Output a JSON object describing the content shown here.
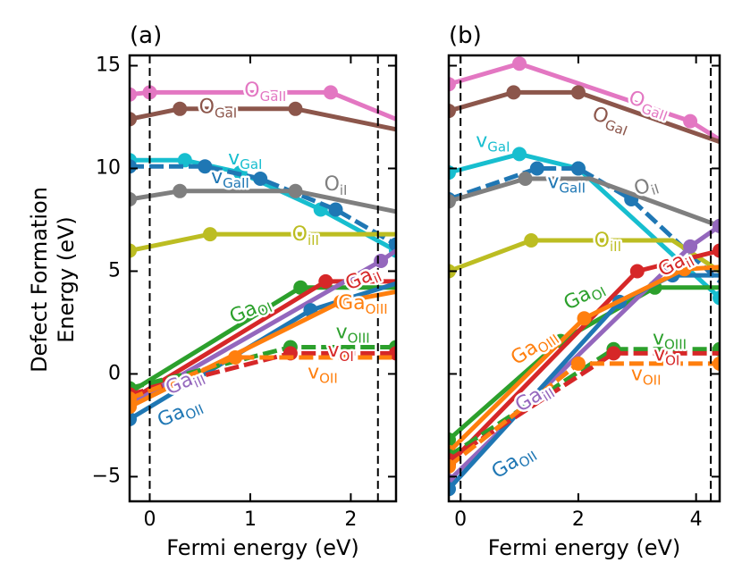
{
  "figure": {
    "y_axis_label_line1": "Defect Formation",
    "y_axis_label_line2": "Energy (eV)"
  },
  "chart_data": [
    {
      "panel_label": "(a)",
      "type": "line",
      "xlabel": "Fermi energy (eV)",
      "ylabel": "Defect Formation Energy (eV)",
      "xlim": [
        -0.2,
        2.45
      ],
      "ylim": [
        -6.2,
        15.5
      ],
      "xticks": [
        0,
        1,
        2
      ],
      "yticks": [
        -5,
        0,
        5,
        10,
        15
      ],
      "vlines": [
        0,
        2.27
      ],
      "series": [
        {
          "key": "OGaII",
          "base": "O",
          "sub": "GaII",
          "color": "#e377c2",
          "dash": false,
          "x": [
            -0.2,
            0.0,
            1.8,
            2.45
          ],
          "y": [
            13.6,
            13.7,
            13.7,
            12.4
          ],
          "markers": [
            0,
            1,
            2
          ],
          "label_at": [
            1.15,
            13.75
          ],
          "label_rot": 0
        },
        {
          "key": "OGaI",
          "base": "O",
          "sub": "GaI",
          "color": "#8c564b",
          "dash": false,
          "x": [
            -0.2,
            0.3,
            1.45,
            2.45
          ],
          "y": [
            12.4,
            12.9,
            12.9,
            11.9
          ],
          "markers": [
            0,
            1,
            2
          ],
          "label_at": [
            0.68,
            12.95
          ],
          "label_rot": 0
        },
        {
          "key": "vGaI",
          "base": "v",
          "sub": "GaI",
          "color": "#17becf",
          "dash": false,
          "x": [
            -0.2,
            0.35,
            0.9,
            1.7,
            2.45
          ],
          "y": [
            10.4,
            10.4,
            9.8,
            8.0,
            6.0
          ],
          "markers": [
            0,
            1,
            2,
            3,
            4
          ],
          "label_at": [
            0.95,
            10.45
          ],
          "label_rot": 0
        },
        {
          "key": "vGaII",
          "base": "v",
          "sub": "GaII",
          "color": "#1f77b4",
          "dash": true,
          "x": [
            -0.2,
            0.55,
            1.1,
            1.85,
            2.45
          ],
          "y": [
            10.1,
            10.1,
            9.5,
            8.0,
            6.3
          ],
          "markers": [
            0,
            1,
            2,
            3,
            4
          ],
          "label_at": [
            0.8,
            9.55
          ],
          "label_rot": 0
        },
        {
          "key": "OiI",
          "base": "O",
          "sub": "iI",
          "color": "#7f7f7f",
          "dash": false,
          "x": [
            -0.2,
            0.3,
            1.45,
            2.45
          ],
          "y": [
            8.5,
            8.9,
            8.9,
            7.9
          ],
          "markers": [
            0,
            1,
            2
          ],
          "label_at": [
            1.85,
            9.2
          ],
          "label_rot": 0
        },
        {
          "key": "OiII",
          "base": "O",
          "sub": "iII",
          "color": "#bcbd22",
          "dash": false,
          "x": [
            -0.2,
            0.6,
            2.45
          ],
          "y": [
            6.0,
            6.8,
            6.8
          ],
          "markers": [
            0,
            1
          ],
          "label_at": [
            1.55,
            6.75
          ],
          "label_rot": 0
        },
        {
          "key": "GaOI",
          "base": "Ga",
          "sub": "OI",
          "color": "#2ca02c",
          "dash": false,
          "x": [
            -0.2,
            1.5,
            2.45
          ],
          "y": [
            -0.9,
            4.2,
            4.2
          ],
          "markers": [
            0,
            1
          ],
          "label_at": [
            1.0,
            3.1
          ],
          "label_rot": -24
        },
        {
          "key": "GaiI",
          "base": "Ga",
          "sub": "iI",
          "color": "#d62728",
          "dash": false,
          "x": [
            -0.2,
            1.75,
            2.45
          ],
          "y": [
            -1.3,
            4.5,
            4.5
          ],
          "markers": [
            0,
            1
          ],
          "label_at": [
            2.12,
            4.65
          ],
          "label_rot": -24
        },
        {
          "key": "GaiII",
          "base": "Ga",
          "sub": "iII",
          "color": "#9467bd",
          "dash": false,
          "x": [
            -0.2,
            2.3,
            2.45
          ],
          "y": [
            -1.5,
            5.5,
            6.0
          ],
          "markers": [
            0,
            1
          ],
          "label_at": [
            0.35,
            -0.4
          ],
          "label_rot": -24
        },
        {
          "key": "GaOII",
          "base": "Ga",
          "sub": "OII",
          "color": "#1f77b4",
          "dash": false,
          "x": [
            -0.2,
            1.6,
            2.45
          ],
          "y": [
            -2.2,
            3.1,
            4.4
          ],
          "markers": [
            0,
            1
          ],
          "label_at": [
            0.3,
            -1.9
          ],
          "label_rot": -24
        },
        {
          "key": "GaOIII",
          "base": "Ga",
          "sub": "OIII",
          "color": "#ff7f0e",
          "dash": false,
          "x": [
            -0.2,
            1.9,
            2.45
          ],
          "y": [
            -1.6,
            3.5,
            4.0
          ],
          "markers": [
            0,
            1
          ],
          "label_at": [
            2.12,
            3.4
          ],
          "label_rot": 0
        },
        {
          "key": "vOIII",
          "base": "v",
          "sub": "OIII",
          "color": "#2ca02c",
          "dash": true,
          "x": [
            -0.2,
            1.4,
            2.45
          ],
          "y": [
            -0.7,
            1.3,
            1.3
          ],
          "markers": [
            0,
            1,
            2
          ],
          "label_at": [
            2.02,
            2.0
          ],
          "label_rot": 0
        },
        {
          "key": "vOI",
          "base": "v",
          "sub": "OI",
          "color": "#d62728",
          "dash": true,
          "x": [
            -0.2,
            1.4,
            2.45
          ],
          "y": [
            -1.0,
            1.0,
            1.0
          ],
          "markers": [
            0,
            1,
            2
          ],
          "label_at": [
            1.9,
            1.1
          ],
          "label_rot": 0
        },
        {
          "key": "vOII",
          "base": "v",
          "sub": "OII",
          "color": "#ff7f0e",
          "dash": true,
          "x": [
            -0.2,
            0.85,
            2.45
          ],
          "y": [
            -1.2,
            0.8,
            0.8
          ],
          "markers": [
            0,
            1
          ],
          "label_at": [
            1.72,
            0.05
          ],
          "label_rot": 0
        }
      ]
    },
    {
      "panel_label": "(b)",
      "type": "line",
      "xlabel": "Fermi energy (eV)",
      "ylabel": "",
      "xlim": [
        -0.2,
        4.4
      ],
      "ylim": [
        -6.2,
        15.5
      ],
      "xticks": [
        0,
        2,
        4
      ],
      "yticks": [
        -5,
        0,
        5,
        10,
        15
      ],
      "vlines": [
        0,
        4.25
      ],
      "series": [
        {
          "key": "OGaII",
          "base": "O",
          "sub": "GaII",
          "color": "#e377c2",
          "dash": false,
          "x": [
            -0.2,
            1.0,
            3.9,
            4.4
          ],
          "y": [
            14.1,
            15.1,
            12.3,
            11.4
          ],
          "markers": [
            0,
            1,
            2
          ],
          "label_at": [
            3.2,
            13.1
          ],
          "label_rot": 20
        },
        {
          "key": "OGaI",
          "base": "O",
          "sub": "GaI",
          "color": "#8c564b",
          "dash": false,
          "x": [
            -0.2,
            0.9,
            2.0,
            4.4
          ],
          "y": [
            12.8,
            13.7,
            13.7,
            11.3
          ],
          "markers": [
            0,
            1,
            2
          ],
          "label_at": [
            2.55,
            12.35
          ],
          "label_rot": 20
        },
        {
          "key": "vGaI",
          "base": "v",
          "sub": "GaI",
          "color": "#17becf",
          "dash": false,
          "x": [
            -0.2,
            1.0,
            2.0,
            4.4
          ],
          "y": [
            9.8,
            10.7,
            10.0,
            3.7
          ],
          "markers": [
            0,
            1,
            2,
            3
          ],
          "label_at": [
            0.55,
            11.3
          ],
          "label_rot": 0
        },
        {
          "key": "vGaII",
          "base": "v",
          "sub": "GaII",
          "color": "#1f77b4",
          "dash": true,
          "x": [
            -0.2,
            1.3,
            2.0,
            2.9,
            4.4
          ],
          "y": [
            8.5,
            10.0,
            10.0,
            8.5,
            4.5
          ],
          "markers": [
            0,
            1,
            2,
            3
          ],
          "label_at": [
            1.8,
            9.3
          ],
          "label_rot": 0
        },
        {
          "key": "OiI",
          "base": "O",
          "sub": "iI",
          "color": "#7f7f7f",
          "dash": false,
          "x": [
            -0.2,
            1.1,
            2.2,
            4.4
          ],
          "y": [
            8.4,
            9.5,
            9.5,
            7.2
          ],
          "markers": [
            0,
            1,
            3
          ],
          "label_at": [
            3.15,
            9.1
          ],
          "label_rot": -18
        },
        {
          "key": "OiII",
          "base": "O",
          "sub": "iII",
          "color": "#bcbd22",
          "dash": false,
          "x": [
            -0.2,
            1.2,
            3.6,
            4.4
          ],
          "y": [
            5.0,
            6.5,
            6.5,
            5.0
          ],
          "markers": [
            0,
            1
          ],
          "label_at": [
            2.5,
            6.45
          ],
          "label_rot": 0
        },
        {
          "key": "GaOI",
          "base": "Ga",
          "sub": "OI",
          "color": "#2ca02c",
          "dash": false,
          "x": [
            -0.2,
            1.7,
            3.3,
            4.4
          ],
          "y": [
            -3.2,
            1.6,
            4.2,
            4.2
          ],
          "markers": [
            0,
            1,
            2
          ],
          "label_at": [
            2.1,
            3.8
          ],
          "label_rot": -28
        },
        {
          "key": "GaiI",
          "base": "Ga",
          "sub": "iI",
          "color": "#d62728",
          "dash": false,
          "x": [
            -0.2,
            3.0,
            4.4
          ],
          "y": [
            -4.4,
            5.0,
            6.0
          ],
          "markers": [
            0,
            1,
            2
          ],
          "label_at": [
            3.65,
            5.35
          ],
          "label_rot": -28
        },
        {
          "key": "GaiII",
          "base": "Ga",
          "sub": "iII",
          "color": "#9467bd",
          "dash": false,
          "x": [
            -0.2,
            3.9,
            4.4
          ],
          "y": [
            -5.2,
            6.2,
            7.2
          ],
          "markers": [
            0,
            1,
            2
          ],
          "label_at": [
            1.25,
            -1.15
          ],
          "label_rot": -32
        },
        {
          "key": "GaOII",
          "base": "Ga",
          "sub": "OII",
          "color": "#1f77b4",
          "dash": false,
          "x": [
            -0.2,
            2.7,
            3.6,
            4.4
          ],
          "y": [
            -5.6,
            3.5,
            4.8,
            4.8
          ],
          "markers": [
            0,
            1,
            2
          ],
          "label_at": [
            0.9,
            -4.3
          ],
          "label_rot": -32
        },
        {
          "key": "GaOIII",
          "base": "Ga",
          "sub": "OIII",
          "color": "#ff7f0e",
          "dash": false,
          "x": [
            -0.2,
            2.1,
            3.8,
            4.4
          ],
          "y": [
            -3.8,
            2.7,
            5.1,
            5.2
          ],
          "markers": [
            0,
            1,
            2
          ],
          "label_at": [
            1.25,
            1.3
          ],
          "label_rot": -34
        },
        {
          "key": "vOIII",
          "base": "v",
          "sub": "OIII",
          "color": "#2ca02c",
          "dash": true,
          "x": [
            -0.2,
            2.6,
            4.4
          ],
          "y": [
            -4.0,
            1.2,
            1.2
          ],
          "markers": [
            0,
            1,
            2
          ],
          "label_at": [
            3.55,
            1.7
          ],
          "label_rot": 0
        },
        {
          "key": "vOI",
          "base": "v",
          "sub": "OI",
          "color": "#d62728",
          "dash": true,
          "x": [
            -0.2,
            2.6,
            4.4
          ],
          "y": [
            -4.2,
            1.0,
            1.0
          ],
          "markers": [
            0,
            1
          ],
          "label_at": [
            3.5,
            0.9
          ],
          "label_rot": 0
        },
        {
          "key": "vOII",
          "base": "v",
          "sub": "OII",
          "color": "#ff7f0e",
          "dash": true,
          "x": [
            -0.2,
            2.0,
            4.4
          ],
          "y": [
            -4.5,
            0.5,
            0.5
          ],
          "markers": [
            0,
            1,
            2
          ],
          "label_at": [
            3.15,
            -0.05
          ],
          "label_rot": 0
        }
      ]
    }
  ]
}
